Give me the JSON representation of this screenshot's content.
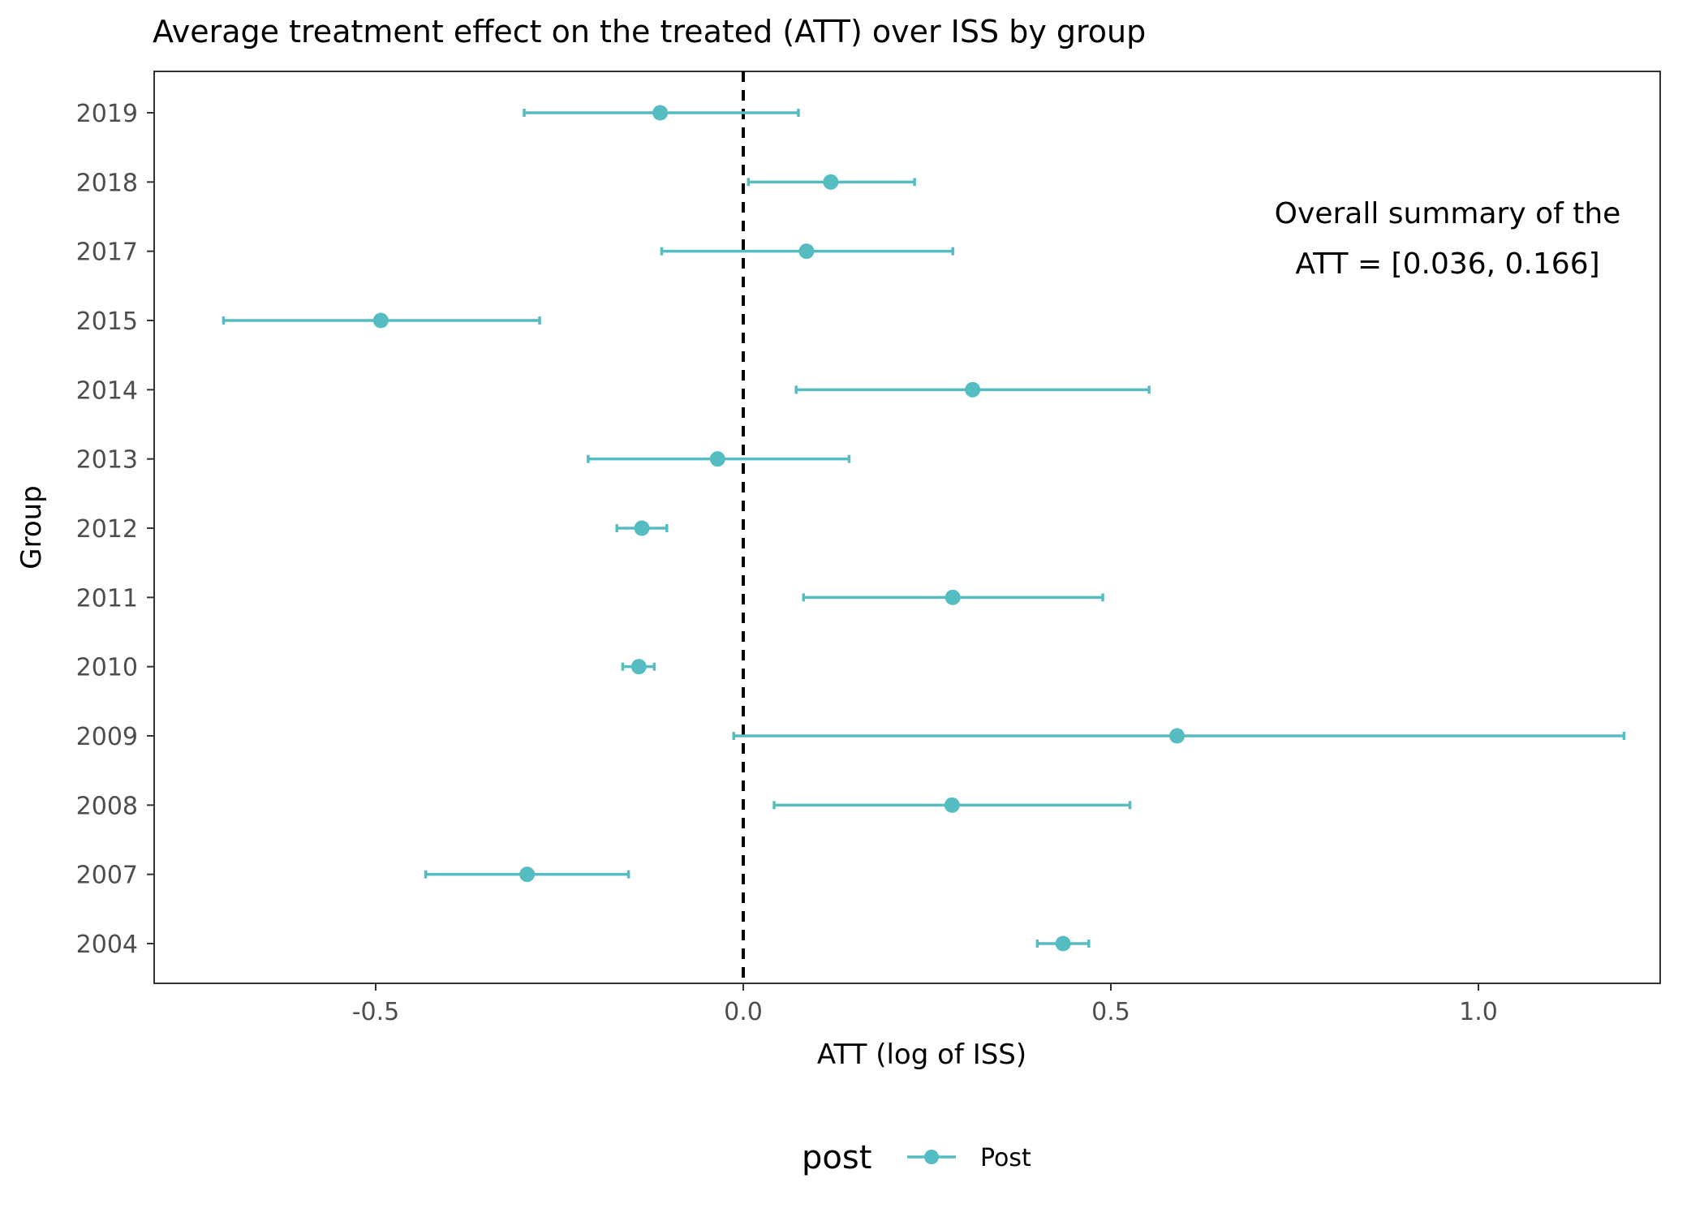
{
  "chart_data": {
    "type": "scatter",
    "title": "Average treatment effect on the treated (ATT) over ISS by group",
    "xlabel": "ATT (log of ISS)",
    "ylabel": "Group",
    "xlim": [
      -0.8,
      1.28
    ],
    "x_ticks": [
      "-0.5",
      "0.0",
      "0.5",
      "1.0"
    ],
    "x_tick_values": [
      -0.5,
      0.0,
      0.5,
      1.0
    ],
    "reference_line_x": 0.0,
    "grid": false,
    "color": "#55bcc2",
    "annotation": [
      "Overall summary of the",
      "ATT =  [0.036, 0.166]"
    ],
    "legend": {
      "title": "post",
      "label": "Post",
      "position": "bottom"
    },
    "series": [
      {
        "name": "Post",
        "points": [
          {
            "group": "2019",
            "att": -0.113,
            "lower": -0.298,
            "upper": 0.075
          },
          {
            "group": "2018",
            "att": 0.119,
            "lower": 0.007,
            "upper": 0.233
          },
          {
            "group": "2017",
            "att": 0.086,
            "lower": -0.111,
            "upper": 0.285
          },
          {
            "group": "2015",
            "att": -0.493,
            "lower": -0.707,
            "upper": -0.277
          },
          {
            "group": "2014",
            "att": 0.312,
            "lower": 0.072,
            "upper": 0.552
          },
          {
            "group": "2013",
            "att": -0.035,
            "lower": -0.211,
            "upper": 0.144
          },
          {
            "group": "2012",
            "att": -0.138,
            "lower": -0.172,
            "upper": -0.104
          },
          {
            "group": "2011",
            "att": 0.285,
            "lower": 0.082,
            "upper": 0.489
          },
          {
            "group": "2010",
            "att": -0.142,
            "lower": -0.164,
            "upper": -0.121
          },
          {
            "group": "2009",
            "att": 0.59,
            "lower": -0.013,
            "upper": 1.198
          },
          {
            "group": "2008",
            "att": 0.284,
            "lower": 0.042,
            "upper": 0.526
          },
          {
            "group": "2007",
            "att": -0.294,
            "lower": -0.432,
            "upper": -0.156
          },
          {
            "group": "2004",
            "att": 0.435,
            "lower": 0.4,
            "upper": 0.47
          }
        ]
      }
    ]
  }
}
